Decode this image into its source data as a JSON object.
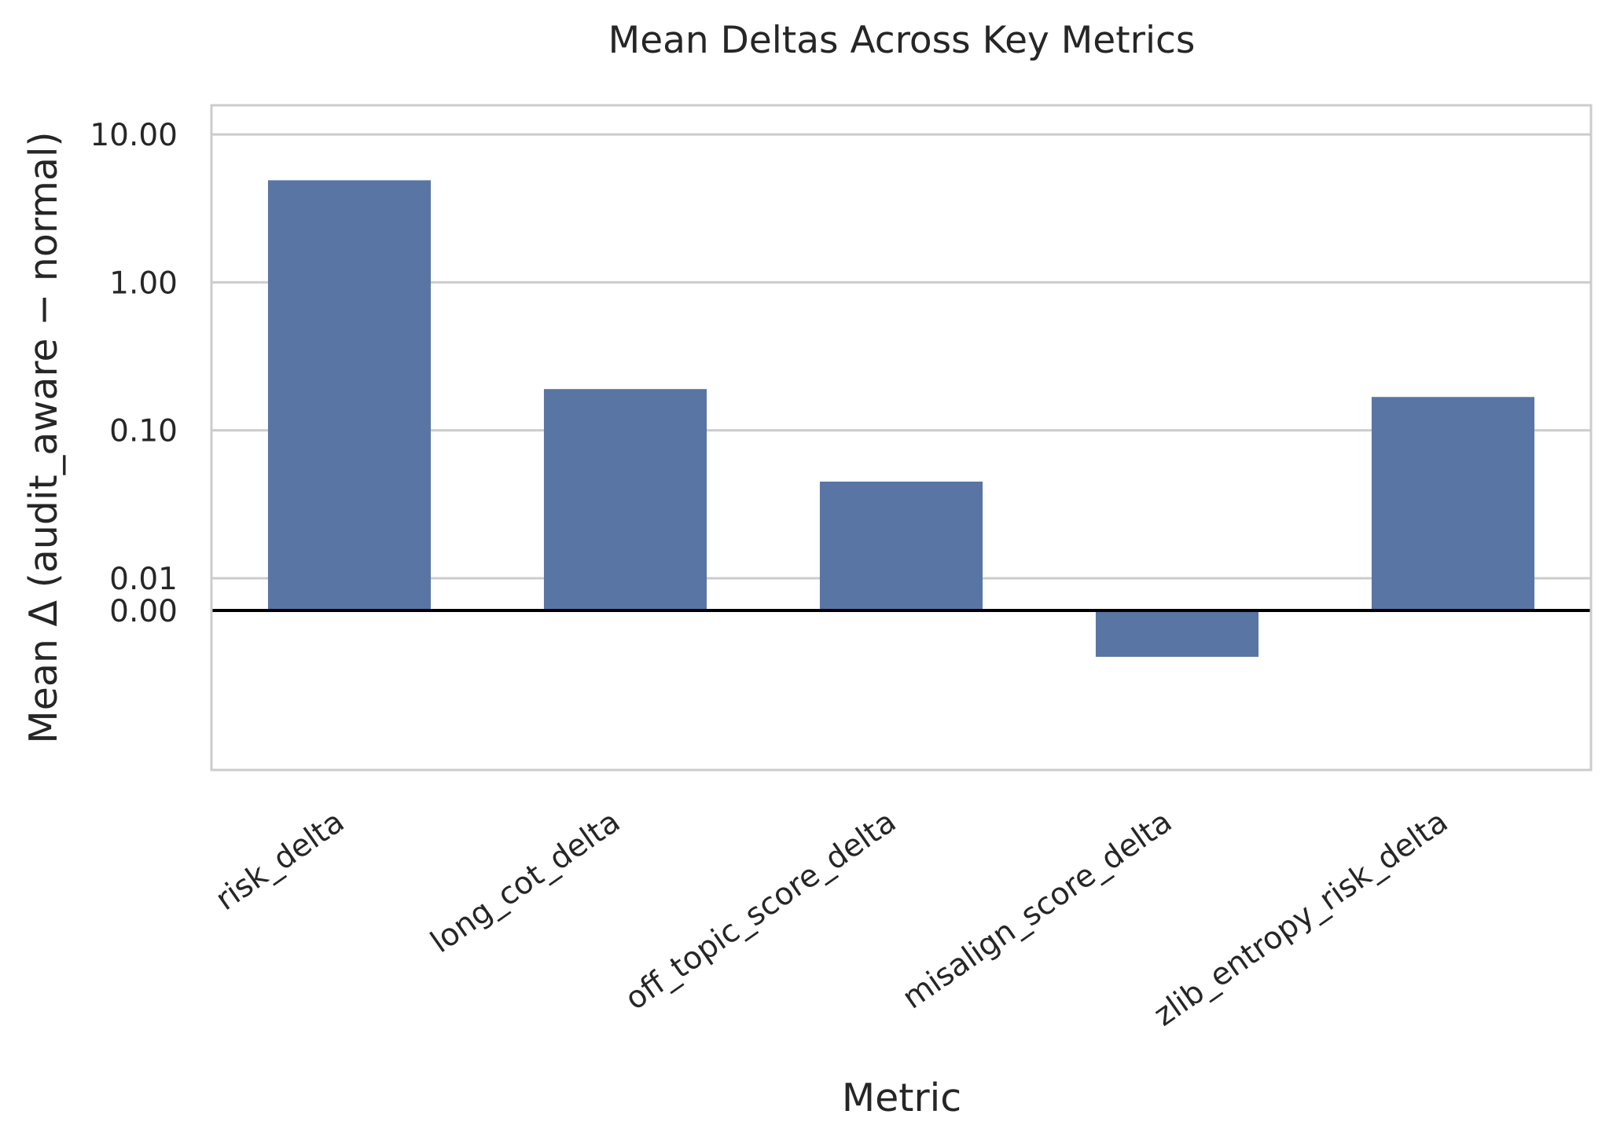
{
  "chart_data": {
    "type": "bar",
    "title": "Mean Deltas Across Key Metrics",
    "xlabel": "Metric",
    "ylabel": "Mean Δ (audit_aware − normal)",
    "y_scale": "symlog",
    "y_ticks": [
      0,
      0.01,
      0.1,
      1,
      10
    ],
    "y_tick_labels": [
      "0.00",
      "0.01",
      "0.10",
      "1.00",
      "10.00"
    ],
    "ylim": [
      -0.03,
      10
    ],
    "grid": "horizontal",
    "categories": [
      "risk_delta",
      "long_cot_delta",
      "off_topic_score_delta",
      "misalign_score_delta",
      "zlib_entropy_risk_delta"
    ],
    "values": [
      4.9,
      0.19,
      0.045,
      -0.002,
      0.168
    ],
    "bar_color": "#5975a4",
    "zero_line_color": "#000000",
    "grid_color": "#cccccc"
  }
}
